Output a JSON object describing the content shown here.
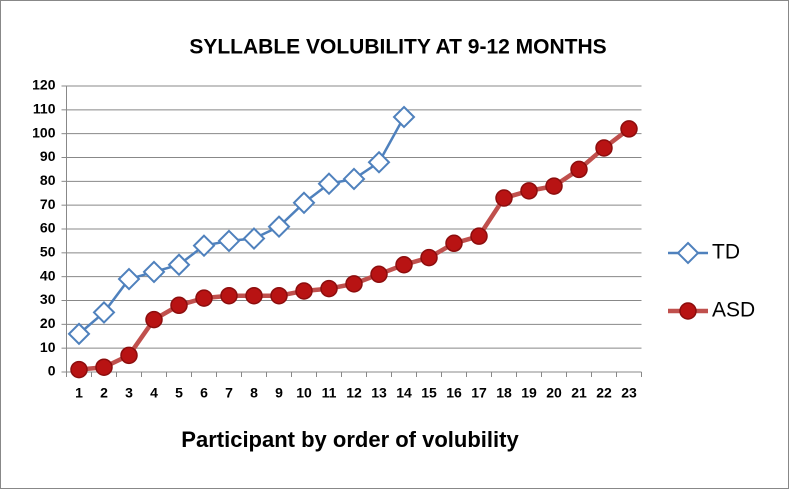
{
  "chart_data": {
    "type": "line",
    "title": "SYLLABLE VOLUBILITY AT 9-12 MONTHS",
    "x_label": "Participant by order of volubility",
    "categories": [
      1,
      2,
      3,
      4,
      5,
      6,
      7,
      8,
      9,
      10,
      11,
      12,
      13,
      14,
      15,
      16,
      17,
      18,
      19,
      20,
      21,
      22,
      23
    ],
    "series": [
      {
        "name": "TD",
        "color": "#4f81bd",
        "marker": "diamond",
        "values": [
          16,
          25,
          39,
          42,
          45,
          53,
          55,
          56,
          61,
          71,
          79,
          81,
          88,
          107,
          null,
          null,
          null,
          null,
          null,
          null,
          null,
          null,
          null
        ]
      },
      {
        "name": "ASD",
        "color": "#c0504d",
        "marker": "circle",
        "values": [
          1,
          2,
          7,
          22,
          28,
          31,
          32,
          32,
          32,
          34,
          35,
          37,
          41,
          45,
          48,
          54,
          57,
          73,
          76,
          78,
          85,
          94,
          102
        ]
      }
    ],
    "ylim": [
      0,
      120
    ],
    "yticks": [
      0,
      10,
      20,
      30,
      40,
      50,
      60,
      70,
      80,
      90,
      100,
      110,
      120
    ],
    "grid": true,
    "legend": "right"
  }
}
